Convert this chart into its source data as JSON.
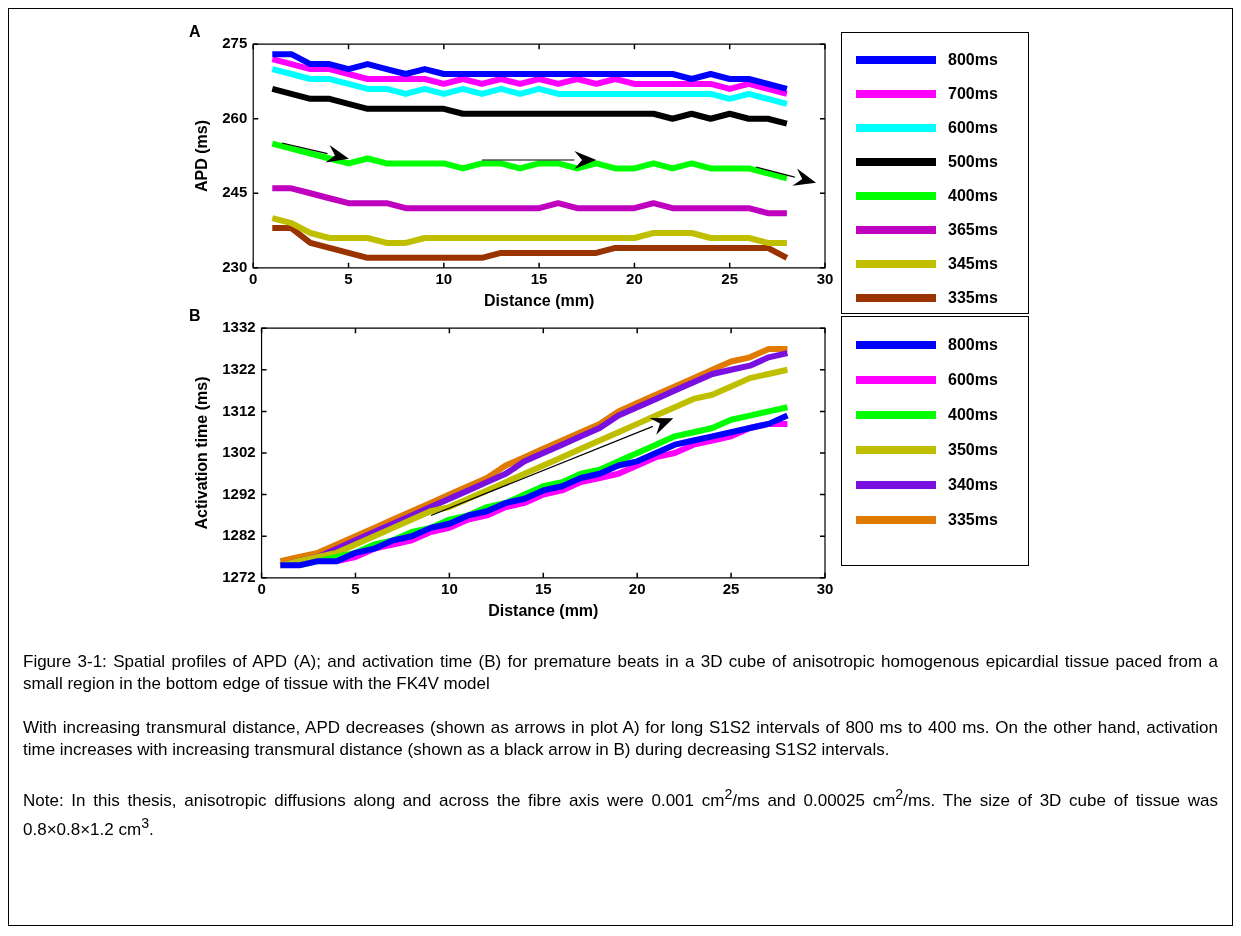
{
  "chart_data": [
    {
      "type": "line",
      "title": "A",
      "xlabel": "Distance (mm)",
      "ylabel": "APD (ms)",
      "legend": "right",
      "x": [
        1,
        2,
        3,
        4,
        5,
        6,
        7,
        8,
        9,
        10,
        11,
        12,
        13,
        14,
        15,
        16,
        17,
        18,
        19,
        20,
        21,
        22,
        23,
        24,
        25,
        26,
        27,
        28
      ],
      "xlim": [
        0,
        30
      ],
      "xticks": [
        0,
        5,
        10,
        15,
        20,
        25,
        30
      ],
      "ylim": [
        230,
        275
      ],
      "yticks": [
        230,
        245,
        260,
        275
      ],
      "series": [
        {
          "name": "800ms",
          "color": "#0000ff",
          "values": [
            273,
            273,
            271,
            271,
            270,
            271,
            270,
            269,
            270,
            269,
            269,
            269,
            269,
            269,
            269,
            269,
            269,
            269,
            269,
            269,
            269,
            269,
            268,
            269,
            268,
            268,
            267,
            266
          ]
        },
        {
          "name": "700ms",
          "color": "#ff00ff",
          "values": [
            272,
            271,
            270,
            270,
            269,
            268,
            268,
            268,
            268,
            267,
            268,
            267,
            268,
            267,
            268,
            267,
            268,
            267,
            268,
            267,
            267,
            267,
            267,
            267,
            266,
            267,
            266,
            265
          ]
        },
        {
          "name": "600ms",
          "color": "#00ffff",
          "values": [
            270,
            269,
            268,
            268,
            267,
            266,
            266,
            265,
            266,
            265,
            266,
            265,
            266,
            265,
            266,
            265,
            265,
            265,
            265,
            265,
            265,
            265,
            265,
            265,
            264,
            265,
            264,
            263
          ]
        },
        {
          "name": "500ms",
          "color": "#000000",
          "values": [
            266,
            265,
            264,
            264,
            263,
            262,
            262,
            262,
            262,
            262,
            261,
            261,
            261,
            261,
            261,
            261,
            261,
            261,
            261,
            261,
            261,
            260,
            261,
            260,
            261,
            260,
            260,
            259
          ]
        },
        {
          "name": "400ms",
          "color": "#00ff00",
          "values": [
            255,
            254,
            253,
            252,
            251,
            252,
            251,
            251,
            251,
            251,
            250,
            251,
            251,
            250,
            251,
            251,
            250,
            251,
            250,
            250,
            251,
            250,
            251,
            250,
            250,
            250,
            249,
            248
          ]
        },
        {
          "name": "365ms",
          "color": "#bf00bf",
          "values": [
            246,
            246,
            245,
            244,
            243,
            243,
            243,
            242,
            242,
            242,
            242,
            242,
            242,
            242,
            242,
            243,
            242,
            242,
            242,
            242,
            243,
            242,
            242,
            242,
            242,
            242,
            241,
            241
          ]
        },
        {
          "name": "345ms",
          "color": "#bfbf00",
          "values": [
            240,
            239,
            237,
            236,
            236,
            236,
            235,
            235,
            236,
            236,
            236,
            236,
            236,
            236,
            236,
            236,
            236,
            236,
            236,
            236,
            237,
            237,
            237,
            236,
            236,
            236,
            235,
            235
          ]
        },
        {
          "name": "335ms",
          "color": "#993300",
          "values": [
            238,
            238,
            235,
            234,
            233,
            232,
            232,
            232,
            232,
            232,
            232,
            232,
            233,
            233,
            233,
            233,
            233,
            233,
            234,
            234,
            234,
            234,
            234,
            234,
            234,
            234,
            234,
            232
          ]
        }
      ]
    },
    {
      "type": "line",
      "title": "B",
      "xlabel": "Distance (mm)",
      "ylabel": "Activation time (ms)",
      "legend": "right",
      "x": [
        1,
        2,
        3,
        4,
        5,
        6,
        7,
        8,
        9,
        10,
        11,
        12,
        13,
        14,
        15,
        16,
        17,
        18,
        19,
        20,
        21,
        22,
        23,
        24,
        25,
        26,
        27,
        28
      ],
      "xlim": [
        0,
        30
      ],
      "xticks": [
        0,
        5,
        10,
        15,
        20,
        25,
        30
      ],
      "ylim": [
        1272,
        1332
      ],
      "yticks": [
        1272,
        1282,
        1292,
        1302,
        1312,
        1322,
        1332
      ],
      "series": [
        {
          "name": "800ms",
          "color": "#0000ff",
          "values": [
            1275,
            1275,
            1276,
            1276,
            1278,
            1279,
            1281,
            1282,
            1284,
            1285,
            1287,
            1288,
            1290,
            1291,
            1293,
            1294,
            1296,
            1297,
            1299,
            1300,
            1302,
            1304,
            1305,
            1306,
            1307,
            1308,
            1309,
            1311
          ]
        },
        {
          "name": "600ms",
          "color": "#ff00ff",
          "values": [
            null,
            null,
            null,
            1276,
            1277,
            1279,
            1280,
            1281,
            1283,
            1284,
            1286,
            1287,
            1289,
            1290,
            1292,
            1293,
            1295,
            1296,
            1297,
            1299,
            1301,
            1302,
            1304,
            1305,
            1306,
            1308,
            1309,
            1309
          ]
        },
        {
          "name": "400ms",
          "color": "#00ff00",
          "values": [
            null,
            1275,
            1276,
            1277,
            1278,
            1280,
            1281,
            1283,
            1284,
            1286,
            1287,
            1289,
            1290,
            1292,
            1294,
            1295,
            1297,
            1298,
            1300,
            1302,
            1304,
            1306,
            1307,
            1308,
            1310,
            1311,
            1312,
            1313
          ]
        },
        {
          "name": "350ms",
          "color": "#bfbf00",
          "values": [
            1275,
            1276,
            1277,
            1278,
            1280,
            1282,
            1284,
            1286,
            1288,
            1289,
            1291,
            1293,
            1295,
            1297,
            1299,
            1301,
            1303,
            1305,
            1307,
            1309,
            1311,
            1313,
            1315,
            1316,
            1318,
            1320,
            1321,
            1322
          ]
        },
        {
          "name": "340ms",
          "color": "#7a10e0",
          "values": [
            1275,
            1276,
            1277,
            1279,
            1281,
            1283,
            1285,
            1287,
            1289,
            1291,
            1293,
            1295,
            1297,
            1300,
            1302,
            1304,
            1306,
            1308,
            1311,
            1313,
            1315,
            1317,
            1319,
            1321,
            1322,
            1323,
            1325,
            1326
          ]
        },
        {
          "name": "335ms",
          "color": "#e07a00",
          "values": [
            1276,
            1277,
            1278,
            1280,
            1282,
            1284,
            1286,
            1288,
            1290,
            1292,
            1294,
            1296,
            1299,
            1301,
            1303,
            1305,
            1307,
            1309,
            1312,
            1314,
            1316,
            1318,
            1320,
            1322,
            1324,
            1325,
            1327,
            1327
          ]
        }
      ],
      "annotations": [
        "Figure 3-1: Spatial profiles of APD (A); and activation time (B) for premature beats in a 3D cube of anisotropic homogenous epicardial tissue paced from a small region in the bottom edge of tissue with the FK4V model",
        "With increasing transmural distance, APD decreases (shown as arrows in plot A) for long S1S2 intervals of 800 ms to 400 ms. On the other hand, activation time increases with increasing transmural distance (shown as a black arrow in B) during decreasing S1S2 intervals.",
        "Note: In this thesis, anisotropic diffusions along and across the fibre axis were 0.001 cm$^{2}$/ms and 0.00025 cm$^{2}$/ms. The size of 3D cube of tissue was 0.8×0.8×1.2 cm$^{3}$."
      ]
    }
  ]
}
